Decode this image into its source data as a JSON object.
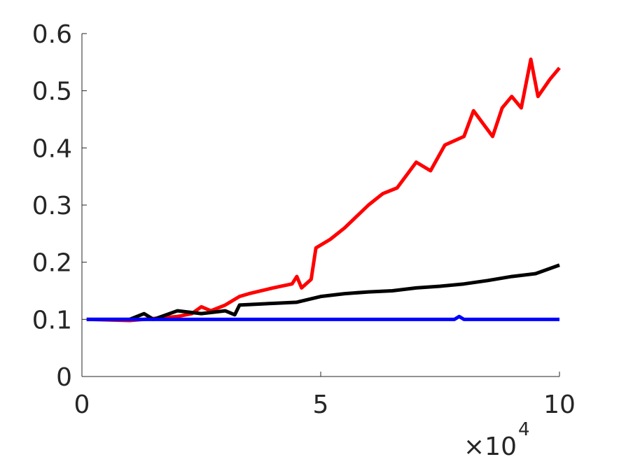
{
  "chart_data": {
    "type": "line",
    "x_multiplier": {
      "base": "×10",
      "exponent": "4"
    },
    "xlim": [
      0,
      10
    ],
    "xticks": [
      0,
      5,
      10
    ],
    "ylim": [
      0,
      0.6
    ],
    "yticks": [
      0,
      0.1,
      0.2,
      0.3,
      0.4,
      0.5,
      0.6
    ],
    "grid": false,
    "series": [
      {
        "color": "#ff0000",
        "x": [
          0.1,
          1.0,
          2.0,
          2.3,
          2.5,
          2.7,
          3.0,
          3.3,
          3.5,
          4.0,
          4.4,
          4.5,
          4.6,
          4.8,
          4.9,
          5.2,
          5.5,
          6.0,
          6.3,
          6.6,
          7.0,
          7.3,
          7.6,
          8.0,
          8.2,
          8.6,
          8.8,
          9.0,
          9.2,
          9.4,
          9.55,
          9.8,
          10.0
        ],
        "values": [
          0.1,
          0.098,
          0.105,
          0.11,
          0.122,
          0.115,
          0.125,
          0.14,
          0.145,
          0.155,
          0.162,
          0.175,
          0.155,
          0.17,
          0.225,
          0.24,
          0.26,
          0.3,
          0.32,
          0.33,
          0.375,
          0.36,
          0.405,
          0.42,
          0.465,
          0.42,
          0.47,
          0.49,
          0.47,
          0.555,
          0.49,
          0.52,
          0.54
        ]
      },
      {
        "color": "#000000",
        "x": [
          0.1,
          1.0,
          1.3,
          1.5,
          2.0,
          2.5,
          3.0,
          3.2,
          3.3,
          4.0,
          4.5,
          5.0,
          5.5,
          6.0,
          6.5,
          7.0,
          7.5,
          8.0,
          8.5,
          9.0,
          9.5,
          10.0
        ],
        "values": [
          0.1,
          0.1,
          0.11,
          0.1,
          0.115,
          0.11,
          0.115,
          0.108,
          0.125,
          0.128,
          0.13,
          0.14,
          0.145,
          0.148,
          0.15,
          0.155,
          0.158,
          0.162,
          0.168,
          0.175,
          0.18,
          0.195
        ]
      },
      {
        "color": "#0000ff",
        "x": [
          0.1,
          2.0,
          4.0,
          6.0,
          7.8,
          7.9,
          8.0,
          10.0
        ],
        "values": [
          0.1,
          0.1,
          0.1,
          0.1,
          0.1,
          0.105,
          0.1,
          0.1
        ]
      }
    ]
  }
}
